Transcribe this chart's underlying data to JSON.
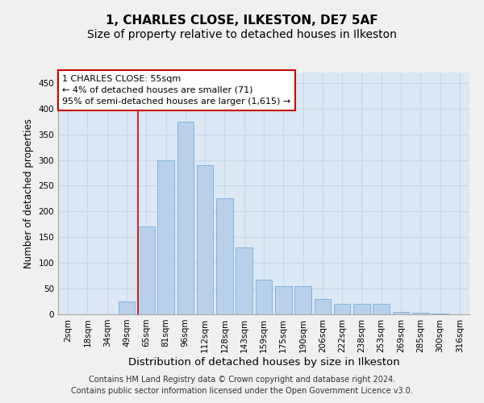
{
  "title": "1, CHARLES CLOSE, ILKESTON, DE7 5AF",
  "subtitle": "Size of property relative to detached houses in Ilkeston",
  "xlabel": "Distribution of detached houses by size in Ilkeston",
  "ylabel": "Number of detached properties",
  "categories": [
    "2sqm",
    "18sqm",
    "34sqm",
    "49sqm",
    "65sqm",
    "81sqm",
    "96sqm",
    "112sqm",
    "128sqm",
    "143sqm",
    "159sqm",
    "175sqm",
    "190sqm",
    "206sqm",
    "222sqm",
    "238sqm",
    "253sqm",
    "269sqm",
    "285sqm",
    "300sqm",
    "316sqm"
  ],
  "values": [
    0,
    0,
    0,
    25,
    170,
    300,
    375,
    290,
    225,
    130,
    68,
    55,
    55,
    30,
    20,
    20,
    20,
    5,
    3,
    2,
    0
  ],
  "bar_color": "#b8d0ea",
  "bar_edge_color": "#7aadd4",
  "grid_color": "#c8d8e8",
  "background_color": "#dce8f4",
  "annotation_box_color": "#ffffff",
  "annotation_border_color": "#cc0000",
  "vline_color": "#cc0000",
  "annotation_line1": "1 CHARLES CLOSE: 55sqm",
  "annotation_line2": "← 4% of detached houses are smaller (71)",
  "annotation_line3": "95% of semi-detached houses are larger (1,615) →",
  "ylim": [
    0,
    470
  ],
  "yticks": [
    0,
    50,
    100,
    150,
    200,
    250,
    300,
    350,
    400,
    450
  ],
  "footer_line1": "Contains HM Land Registry data © Crown copyright and database right 2024.",
  "footer_line2": "Contains public sector information licensed under the Open Government Licence v3.0.",
  "title_fontsize": 11,
  "subtitle_fontsize": 10,
  "xlabel_fontsize": 9.5,
  "ylabel_fontsize": 8.5,
  "tick_fontsize": 7.5,
  "annotation_fontsize": 8,
  "footer_fontsize": 7
}
